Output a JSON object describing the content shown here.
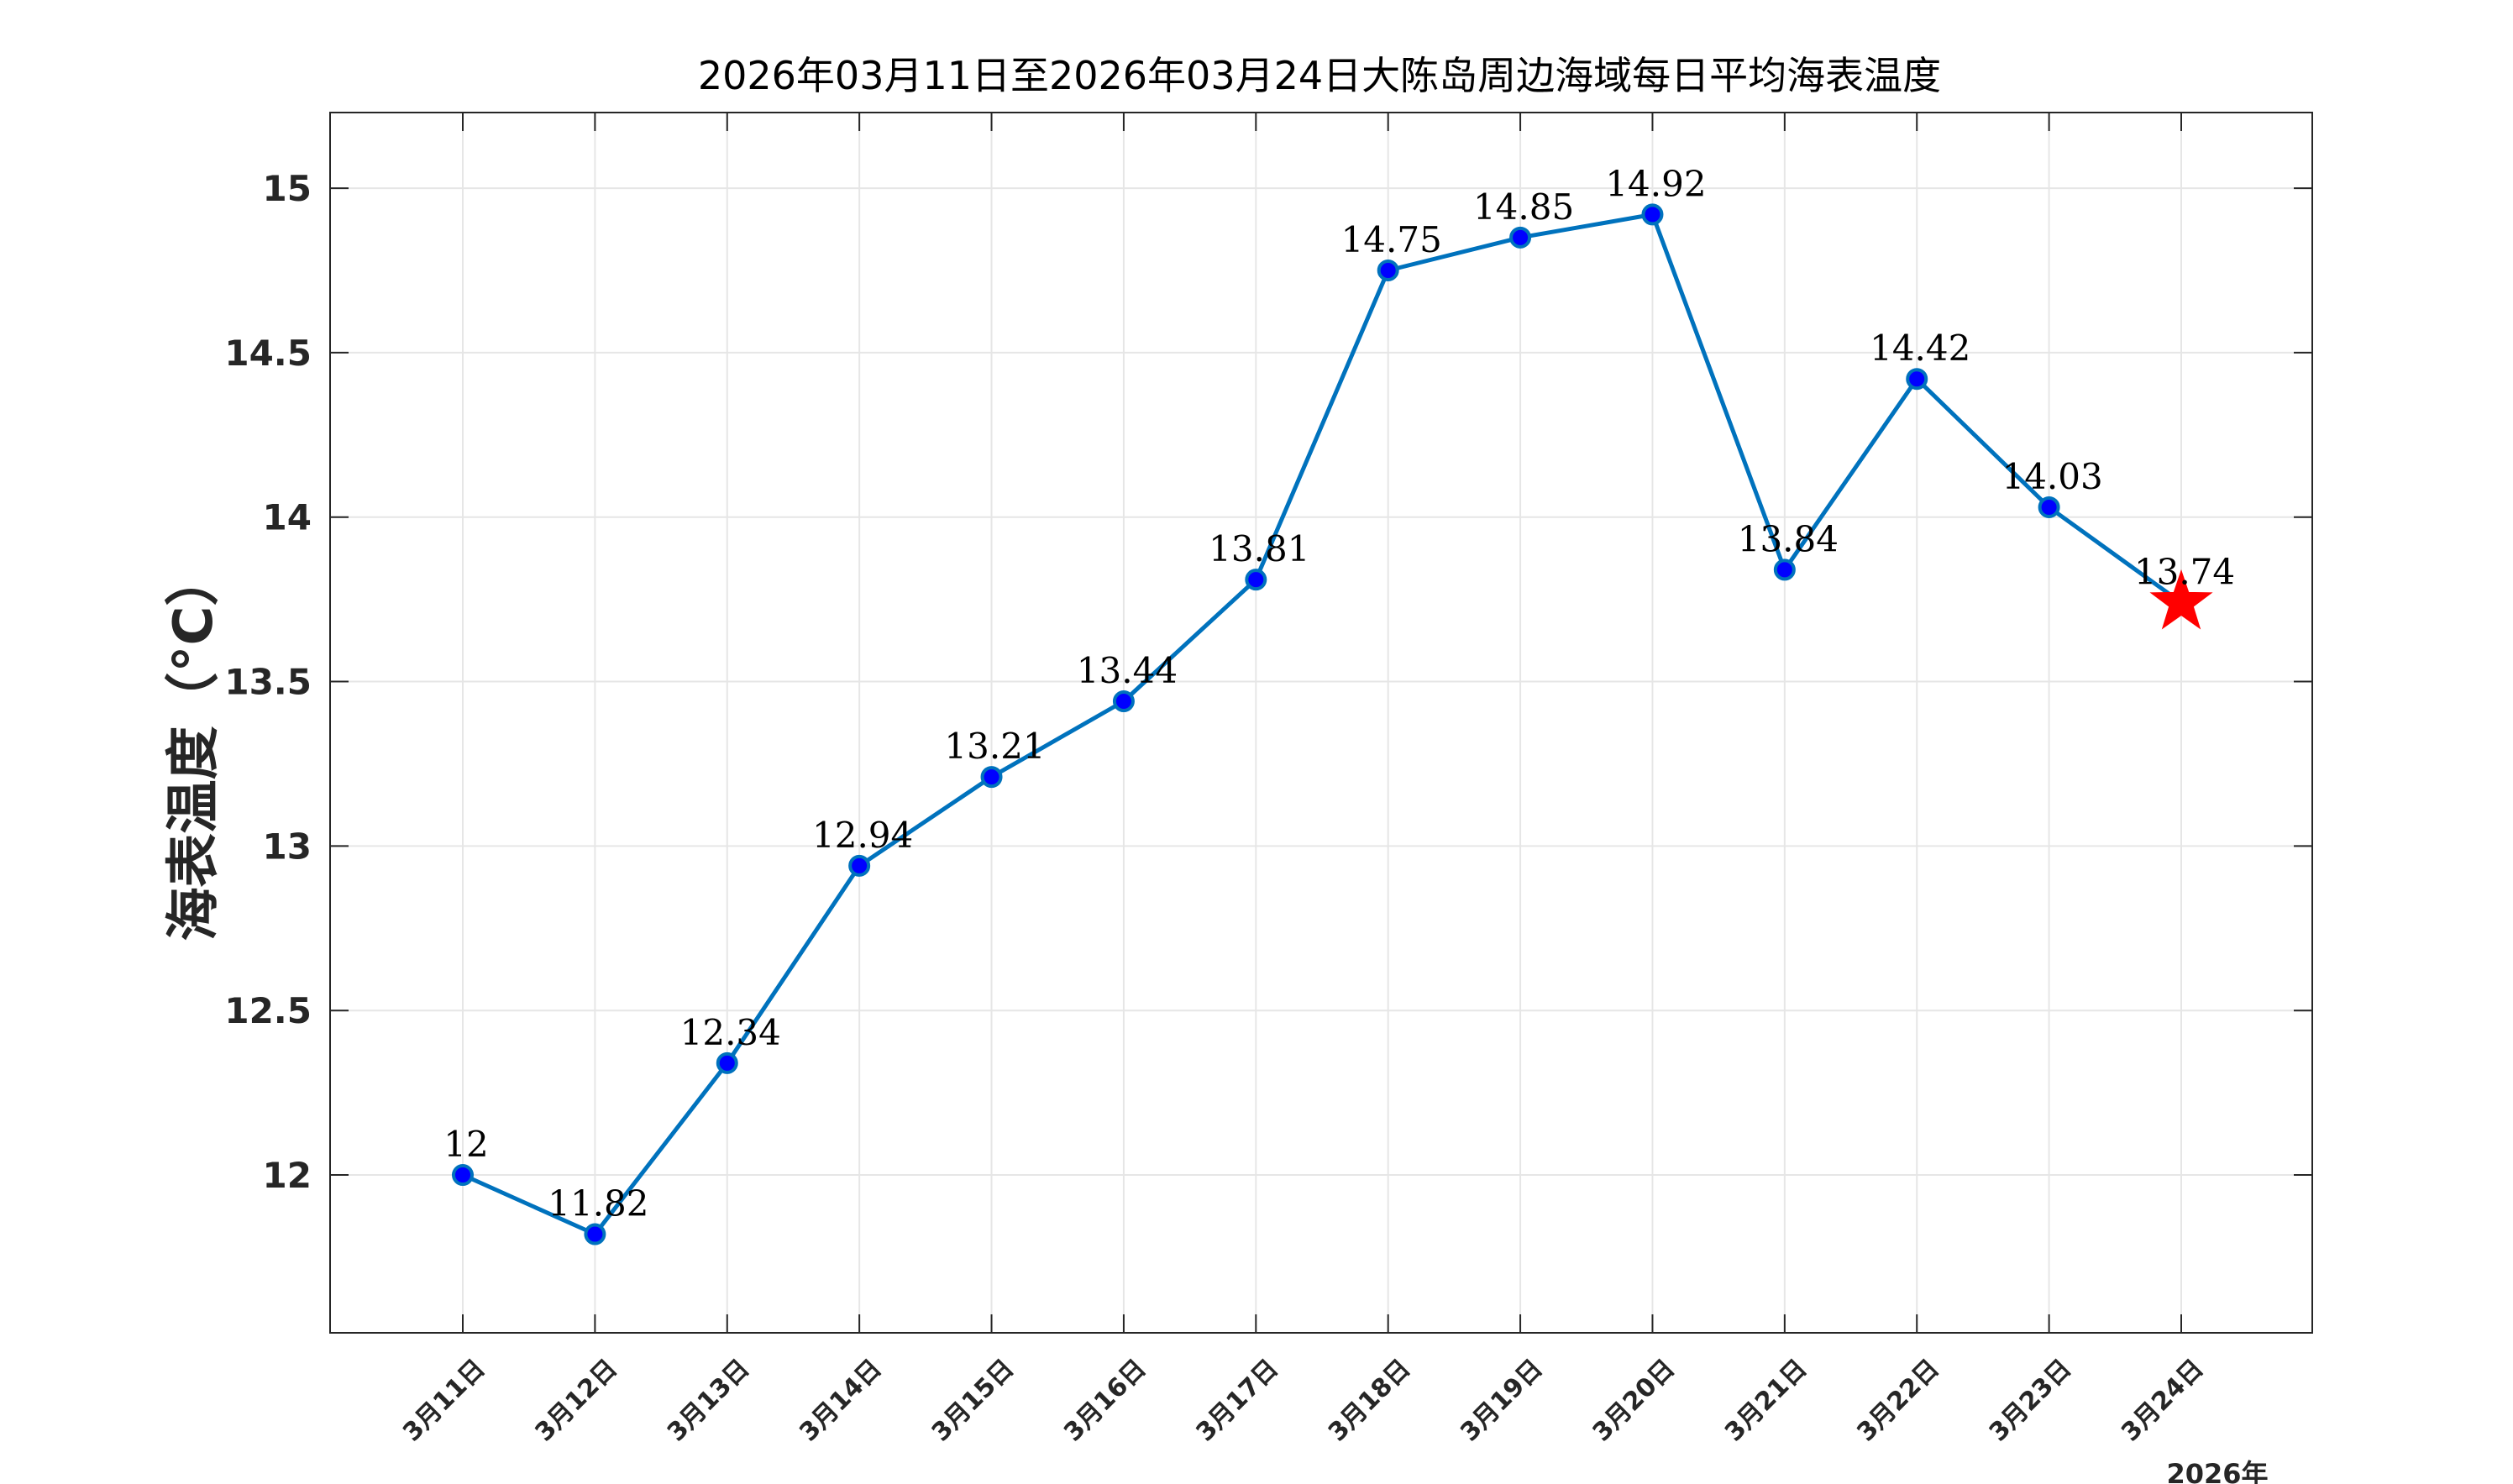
{
  "chart_data": {
    "type": "line",
    "title": "2026年03月11日至2026年03月24日大陈岛周边海域每日平均海表温度",
    "ylabel": "海表温度（°C）",
    "xlabel": "",
    "x_secondary_label": "2026年",
    "categories": [
      "3月11日",
      "3月12日",
      "3月13日",
      "3月14日",
      "3月15日",
      "3月16日",
      "3月17日",
      "3月18日",
      "3月19日",
      "3月20日",
      "3月21日",
      "3月22日",
      "3月23日",
      "3月24日"
    ],
    "values": [
      12.0,
      11.82,
      12.34,
      12.94,
      13.21,
      13.44,
      13.81,
      14.75,
      14.85,
      14.92,
      13.84,
      14.42,
      14.03,
      13.74
    ],
    "data_labels": [
      "12",
      "11.82",
      "12.34",
      "12.94",
      "13.21",
      "13.44",
      "13.81",
      "14.75",
      "14.85",
      "14.92",
      "13.84",
      "14.42",
      "14.03",
      "13.74"
    ],
    "ylim": [
      11.52,
      15.23
    ],
    "yticks": [
      12,
      12.5,
      13,
      13.5,
      14,
      14.5,
      15
    ],
    "ytick_labels": [
      "12",
      "12.5",
      "13",
      "13.5",
      "14",
      "14.5",
      "15"
    ],
    "grid": true,
    "legend": "none",
    "line_color": "#0072BD",
    "marker_fill": "#0000FF",
    "marker_edge": "#0072BD",
    "highlight_last": "star",
    "highlight_color": "#FF0000"
  }
}
